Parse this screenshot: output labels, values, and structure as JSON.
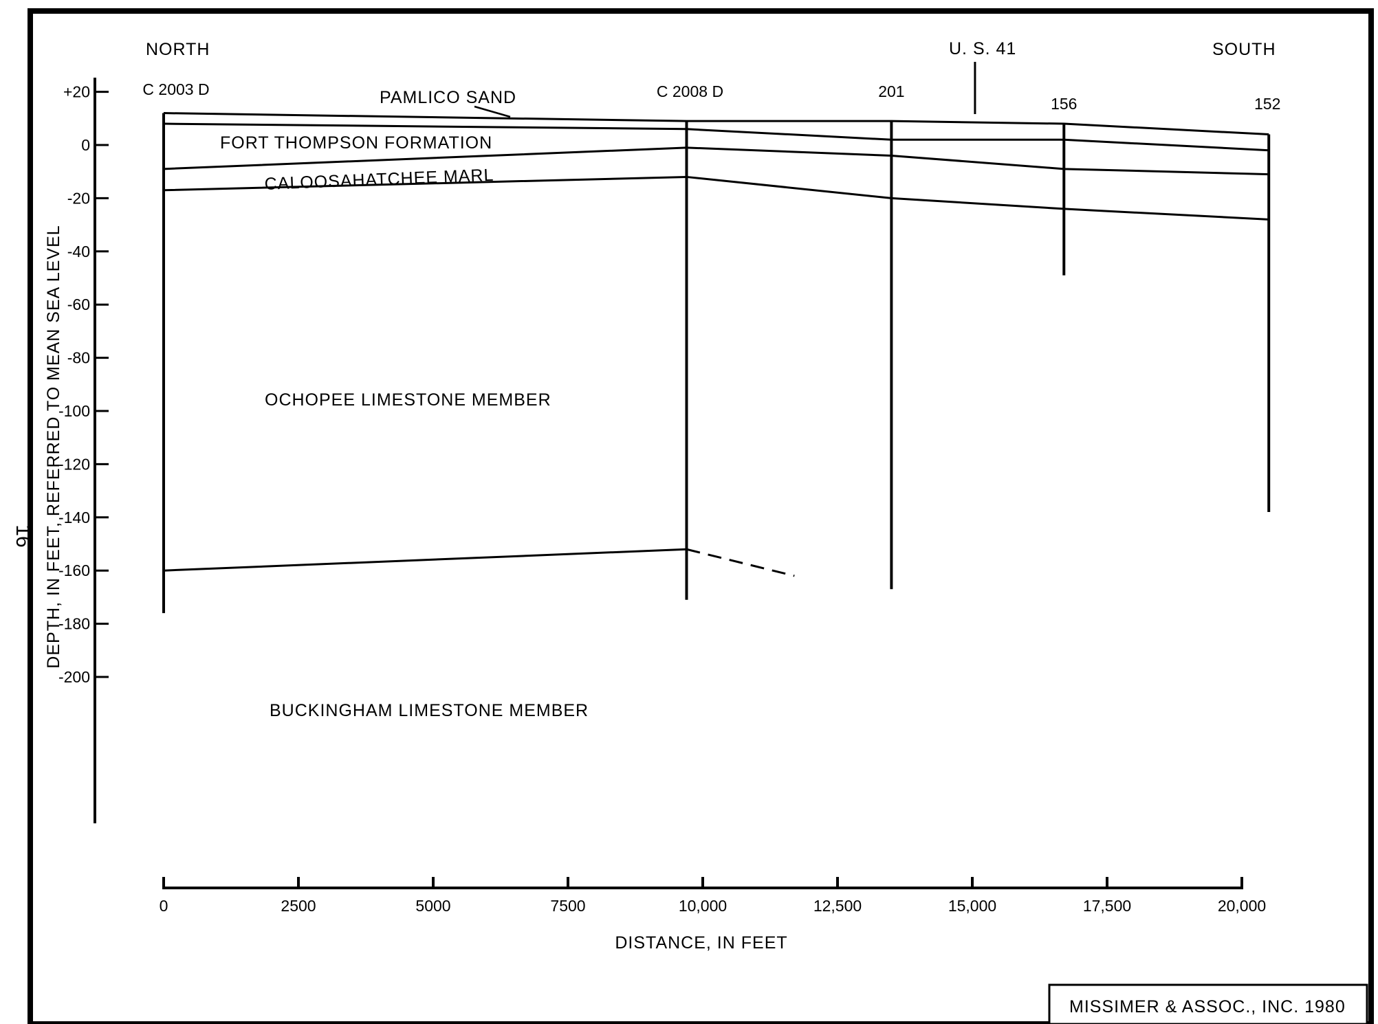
{
  "page_number": "16",
  "directions": {
    "north": "NORTH",
    "south": "SOUTH"
  },
  "highway_label": "U. S. 41",
  "wells": [
    {
      "id": "C 2003 D",
      "x": 0,
      "top": 12,
      "bottom": -176
    },
    {
      "id": "C 2008 D",
      "x": 9700,
      "top": 9,
      "bottom": -171
    },
    {
      "id": "201",
      "x": 13500,
      "top": 9,
      "bottom": -167
    },
    {
      "id": "156",
      "x": 16700,
      "top": 8,
      "bottom": -49
    },
    {
      "id": "152",
      "x": 20500,
      "top": 4,
      "bottom": -138
    }
  ],
  "highway_x": 15050,
  "units": [
    {
      "name": "PAMLICO SAND"
    },
    {
      "name": "FORT THOMPSON FORMATION"
    },
    {
      "name": "CALOOSAHATCHEE MARL"
    },
    {
      "name": "OCHOPEE LIMESTONE MEMBER"
    },
    {
      "name": "BUCKINGHAM LIMESTONE MEMBER"
    }
  ],
  "chart_data": {
    "type": "diagram",
    "xlabel": "DISTANCE, IN FEET",
    "ylabel": "DEPTH, IN FEET, REFERRED TO MEAN SEA LEVEL",
    "xlim": [
      0,
      20000
    ],
    "ylim": [
      -200,
      20
    ],
    "x_ticks": [
      0,
      2500,
      5000,
      7500,
      10000,
      12500,
      15000,
      17500,
      20000
    ],
    "x_tick_labels": [
      "0",
      "2500",
      "5000",
      "7500",
      "10,000",
      "12,500",
      "15,000",
      "17,500",
      "20,000"
    ],
    "y_ticks": [
      20,
      0,
      -20,
      -40,
      -60,
      -80,
      -100,
      -120,
      -140,
      -160,
      -180,
      -200
    ],
    "y_tick_labels": [
      "+20",
      "0",
      "-20",
      "-40",
      "-60",
      "-80",
      "-100",
      "-120",
      "-140",
      "-160",
      "-180",
      "-200"
    ],
    "series": [
      {
        "name": "PAMLICO SAND",
        "x": [
          0,
          9700,
          13500,
          16700,
          20500
        ],
        "y": [
          12,
          9,
          9,
          8,
          4
        ]
      },
      {
        "name": "FORT THOMPSON FORMATION",
        "x": [
          0,
          9700,
          13500,
          16700,
          20500
        ],
        "y": [
          8,
          6,
          2,
          2,
          -2
        ]
      },
      {
        "name": "CALOOSAHATCHEE MARL",
        "x": [
          0,
          9700,
          13500,
          16700,
          20500
        ],
        "y": [
          -9,
          -1,
          -4,
          -9,
          -11
        ]
      },
      {
        "name": "OCHOPEE LIMESTONE MEMBER",
        "x": [
          0,
          9700,
          13500,
          16700,
          20500
        ],
        "y": [
          -17,
          -12,
          -20,
          -24,
          -28
        ]
      },
      {
        "name": "BUCKINGHAM LIMESTONE MEMBER",
        "x": [
          0,
          9700
        ],
        "y": [
          -160,
          -152
        ],
        "dashed_extension": {
          "x": [
            9700,
            11700
          ],
          "y": [
            -152,
            -162
          ]
        }
      }
    ]
  },
  "credit": "MISSIMER & ASSOC., INC. 1980"
}
